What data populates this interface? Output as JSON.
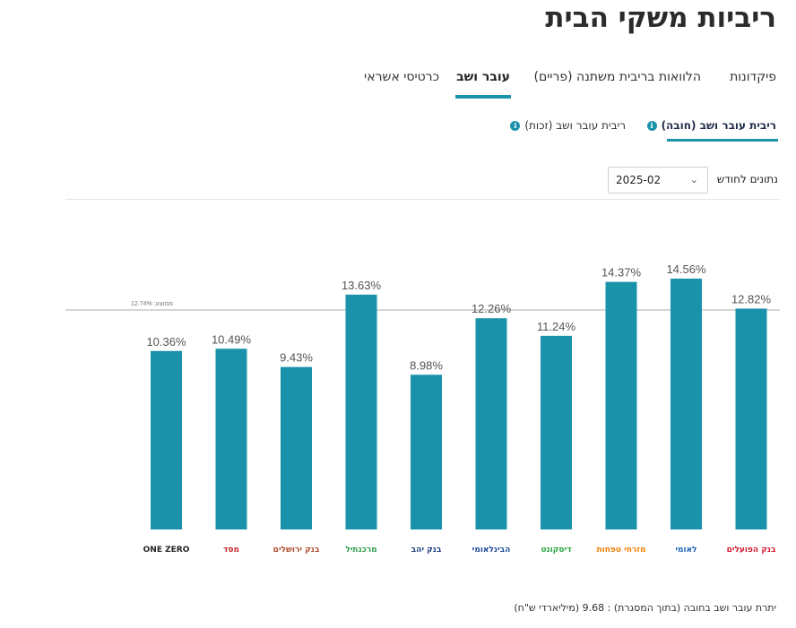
{
  "page": {
    "title": "ריביות משקי הבית"
  },
  "tabs": [
    {
      "label": "פיקדונות"
    },
    {
      "label": "הלוואות בריבית משתנה (פריים)"
    },
    {
      "label": "עובר ושב"
    },
    {
      "label": "כרטיסי אשראי"
    }
  ],
  "subtabs": [
    {
      "label": "ריבית עובר ושב (חובה)"
    },
    {
      "label": "ריבית עובר ושב (זכות)"
    }
  ],
  "filter": {
    "label": "נתונים לחודש",
    "value": "2025-02"
  },
  "chart_data": {
    "type": "bar",
    "title": "",
    "xlabel": "",
    "ylabel": "",
    "categories": [
      "בנק הפועלים",
      "לאומי",
      "מזרחי טפחות",
      "דיסקונט",
      "הבינלאומי",
      "בנק יהב",
      "מרכנתיל",
      "בנק ירושלים",
      "מסד",
      "ONE ZERO"
    ],
    "values": [
      12.82,
      14.56,
      14.37,
      11.24,
      12.26,
      8.98,
      13.63,
      9.43,
      10.49,
      10.36
    ],
    "value_labels": [
      "12.82%",
      "14.56%",
      "14.37%",
      "11.24%",
      "12.26%",
      "8.98%",
      "13.63%",
      "9.43%",
      "10.49%",
      "10.36%"
    ],
    "ylim": [
      0,
      17
    ],
    "grid": false,
    "average": {
      "label": "ממוצע: 12.74%",
      "value": 12.74
    },
    "bar_color": "#1a92aa"
  },
  "logos": [
    {
      "text": "בנק הפועלים",
      "color": "#d3172a"
    },
    {
      "text": "לאומי",
      "color": "#1c63b7"
    },
    {
      "text": "מזרחי טפחות",
      "color": "#ef7d00"
    },
    {
      "text": "דיסקונט",
      "color": "#25a33f"
    },
    {
      "text": "הבינלאומי",
      "color": "#1f4a9b"
    },
    {
      "text": "בנק יהב",
      "color": "#1a3e7c"
    },
    {
      "text": "מרכנתיל",
      "color": "#2a9a45"
    },
    {
      "text": "בנק ירושלים",
      "color": "#b04a2c"
    },
    {
      "text": "מסד",
      "color": "#c8262a"
    },
    {
      "text": "ONE ZERO",
      "color": "#222222"
    }
  ],
  "footer": {
    "text": "יתרת עובר ושב בחובה (בתוך המסגרת) : 9.68 (מיליארדי ש\"ח)"
  }
}
